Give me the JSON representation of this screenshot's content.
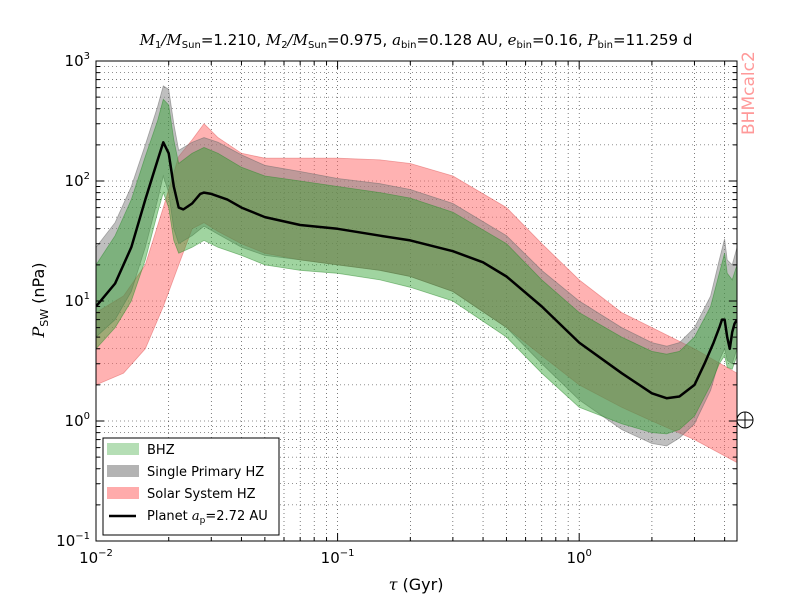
{
  "chart_data": {
    "type": "area",
    "title": "M₁/M_Sun=1.210, M₂/M_Sun=0.975, a_bin=0.128 AU, e_bin=0.16, P_bin=11.259 d",
    "title_parts": {
      "m1": "M",
      "m1_sub": "1",
      "msun1": "/M",
      "msun1_sub": "Sun",
      "m1_val": "=1.210, ",
      "m2": "M",
      "m2_sub": "2",
      "msun2": "/M",
      "msun2_sub": "Sun",
      "m2_val": "=0.975, ",
      "abin": "a",
      "abin_sub": "bin",
      "abin_val": "=0.128 AU, ",
      "ebin": "e",
      "ebin_sub": "bin",
      "ebin_val": "=0.16, ",
      "pbin": "P",
      "pbin_sub": "bin",
      "pbin_val": "=11.259 d"
    },
    "xlabel": "τ (Gyr)",
    "xlabel_parts": {
      "symbol": "τ",
      "unit": " (Gyr)"
    },
    "ylabel": "P_SW (nPa)",
    "ylabel_parts": {
      "symbol": "P",
      "sub": "SW",
      "unit": " (nPa)"
    },
    "x_scale": "log",
    "y_scale": "log",
    "xlim": [
      0.01,
      4.5
    ],
    "ylim": [
      0.1,
      1000
    ],
    "x_ticks": [
      {
        "value": 0.01,
        "base": "10",
        "exp": "−2"
      },
      {
        "value": 0.1,
        "base": "10",
        "exp": "−1"
      },
      {
        "value": 1,
        "base": "10",
        "exp": "0"
      }
    ],
    "y_ticks": [
      {
        "value": 0.1,
        "base": "10",
        "exp": "−1"
      },
      {
        "value": 1,
        "base": "10",
        "exp": "0"
      },
      {
        "value": 10,
        "base": "10",
        "exp": "1"
      },
      {
        "value": 100,
        "base": "10",
        "exp": "2"
      },
      {
        "value": 1000,
        "base": "10",
        "exp": "3"
      }
    ],
    "grid": true,
    "legend_position": "lower-left",
    "watermark": "BHMcalc2",
    "earth_marker": {
      "x": 4.5,
      "y": 1.0,
      "symbol": "⊕"
    },
    "colors": {
      "bhz": "#2ca02c",
      "single_primary": "#808080",
      "solar_system": "#ff6666",
      "planet": "#000000",
      "watermark": "#ff9999"
    },
    "series": [
      {
        "name": "Solar System HZ",
        "kind": "band",
        "color": "#ff6666",
        "x": [
          0.01,
          0.013,
          0.016,
          0.019,
          0.022,
          0.025,
          0.028,
          0.032,
          0.04,
          0.05,
          0.07,
          0.1,
          0.15,
          0.2,
          0.3,
          0.5,
          0.7,
          1.0,
          1.5,
          2.0,
          3.0,
          4.5
        ],
        "upper": [
          8,
          11,
          20,
          60,
          160,
          220,
          300,
          230,
          170,
          155,
          155,
          155,
          150,
          140,
          110,
          60,
          30,
          15,
          8,
          6,
          4,
          2.5
        ],
        "lower": [
          2,
          2.5,
          4,
          9,
          20,
          40,
          45,
          38,
          30,
          25,
          22,
          20,
          18,
          16,
          12,
          6,
          3.5,
          2,
          1.3,
          1.0,
          0.7,
          0.45
        ]
      },
      {
        "name": "Single Primary HZ",
        "kind": "band",
        "color": "#808080",
        "x": [
          0.01,
          0.012,
          0.014,
          0.016,
          0.018,
          0.019,
          0.02,
          0.021,
          0.022,
          0.025,
          0.028,
          0.032,
          0.04,
          0.05,
          0.07,
          0.1,
          0.15,
          0.2,
          0.3,
          0.5,
          0.7,
          1.0,
          1.5,
          2.0,
          2.3,
          2.6,
          3.0,
          3.5,
          3.8,
          4.0,
          4.1,
          4.3,
          4.5
        ],
        "upper": [
          28,
          45,
          90,
          200,
          420,
          620,
          580,
          300,
          180,
          210,
          230,
          210,
          165,
          135,
          120,
          105,
          95,
          85,
          65,
          35,
          18,
          10,
          6,
          4.5,
          4.2,
          4.5,
          6,
          11,
          22,
          33,
          22,
          20,
          28
        ],
        "lower": [
          5,
          7,
          12,
          28,
          70,
          110,
          80,
          40,
          30,
          35,
          42,
          36,
          28,
          24,
          22,
          20,
          18,
          16,
          12,
          6,
          3,
          1.5,
          0.85,
          0.65,
          0.62,
          0.72,
          0.95,
          1.8,
          3.2,
          4.0,
          3.2,
          3.0,
          4.0
        ]
      },
      {
        "name": "BHZ",
        "kind": "band",
        "color": "#2ca02c",
        "x": [
          0.01,
          0.012,
          0.014,
          0.016,
          0.018,
          0.019,
          0.02,
          0.021,
          0.022,
          0.025,
          0.028,
          0.032,
          0.04,
          0.05,
          0.07,
          0.1,
          0.15,
          0.2,
          0.3,
          0.5,
          0.7,
          1.0,
          1.5,
          2.0,
          2.3,
          2.6,
          3.0,
          3.5,
          3.8,
          4.0,
          4.1,
          4.3,
          4.5
        ],
        "upper": [
          20,
          35,
          70,
          160,
          320,
          480,
          430,
          220,
          140,
          170,
          190,
          170,
          130,
          110,
          100,
          90,
          80,
          72,
          55,
          30,
          15,
          8,
          5,
          3.8,
          3.6,
          3.8,
          5,
          9,
          17,
          25,
          17,
          15,
          20
        ],
        "lower": [
          4,
          6,
          10,
          22,
          55,
          80,
          60,
          32,
          25,
          28,
          32,
          28,
          24,
          20,
          18,
          17,
          15,
          13,
          10,
          5,
          2.5,
          1.3,
          0.95,
          0.8,
          0.78,
          0.85,
          1.1,
          2.0,
          3.0,
          3.5,
          2.8,
          2.7,
          3.5
        ]
      },
      {
        "name": "Planet a_p=2.72 AU",
        "name_parts": {
          "prefix": "Planet ",
          "a": "a",
          "sub": "p",
          "rest": "=2.72 AU"
        },
        "kind": "line",
        "color": "#000000",
        "x": [
          0.01,
          0.012,
          0.014,
          0.016,
          0.018,
          0.019,
          0.02,
          0.021,
          0.022,
          0.023,
          0.025,
          0.027,
          0.028,
          0.03,
          0.035,
          0.04,
          0.05,
          0.07,
          0.1,
          0.15,
          0.2,
          0.3,
          0.4,
          0.5,
          0.7,
          1.0,
          1.5,
          2.0,
          2.3,
          2.6,
          3.0,
          3.3,
          3.6,
          3.8,
          3.9,
          4.0,
          4.1,
          4.2,
          4.3,
          4.4,
          4.5
        ],
        "values": [
          9,
          14,
          28,
          70,
          150,
          210,
          170,
          90,
          60,
          58,
          65,
          78,
          80,
          78,
          70,
          60,
          50,
          43,
          40,
          35,
          32,
          26,
          21,
          16,
          9,
          4.5,
          2.5,
          1.7,
          1.55,
          1.6,
          2.0,
          3.0,
          4.5,
          6,
          7,
          7,
          5,
          4,
          5.5,
          6.5,
          7
        ]
      }
    ]
  }
}
